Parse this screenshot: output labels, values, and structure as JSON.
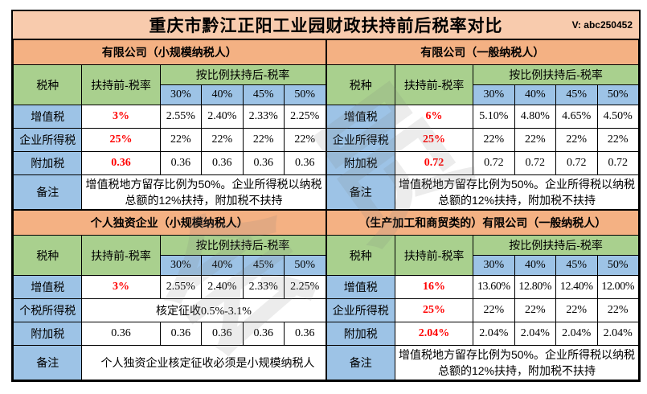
{
  "title": "重庆市黔江正阳工业园财政扶持前后税率对比",
  "version": "V: abc250452",
  "watermark": "会员",
  "colors": {
    "title_bar": "#F8CBAD",
    "section_header": "#F4B183",
    "header_green": "#A9D08E",
    "cell_blue": "#9DC3E6",
    "highlight_red": "#FF0000"
  },
  "labels": {
    "tax_type": "税种",
    "before": "扶持前-税率",
    "after": "按比例扶持后-税率",
    "ratios": [
      "30%",
      "40%",
      "45%",
      "50%"
    ],
    "remark": "备注"
  },
  "tables": [
    {
      "section": "有限公司（小规模纳税人）",
      "rows": [
        {
          "label": "增值税",
          "before": "3%",
          "after": [
            "2.55%",
            "2.40%",
            "2.33%",
            "2.25%"
          ]
        },
        {
          "label": "企业所得税",
          "before": "25%",
          "after": [
            "22%",
            "22%",
            "22%",
            "22%"
          ]
        },
        {
          "label": "附加税",
          "before": "0.36",
          "after": [
            "0.36",
            "0.36",
            "0.36",
            "0.36"
          ]
        }
      ],
      "remark": "增值税地方留存比例为50%。企业所得税以纳税总额的12%扶持，附加税不扶持"
    },
    {
      "section": "有限公司（一般纳税人）",
      "rows": [
        {
          "label": "增值税",
          "before": "6%",
          "after": [
            "5.10%",
            "4.80%",
            "4.65%",
            "4.50%"
          ]
        },
        {
          "label": "企业所得税",
          "before": "25%",
          "after": [
            "22%",
            "22%",
            "22%",
            "22%"
          ]
        },
        {
          "label": "附加税",
          "before": "0.72",
          "after": [
            "0.72",
            "0.72",
            "0.72",
            "0.72"
          ]
        }
      ],
      "remark": "增值税地方留存比例为50%。企业所得税以纳税总额的12%扶持，附加税不扶持"
    },
    {
      "section": "个人独资企业（小规模纳税人）",
      "rows": [
        {
          "label": "增值税",
          "before": "3%",
          "after": [
            "2.55%",
            "2.40%",
            "2.33%",
            "2.25%"
          ]
        },
        {
          "label": "个税所得税",
          "merged": "核定征收0.5%-3.1%"
        },
        {
          "label": "附加税",
          "before": "0.36",
          "after": [
            "0.36",
            "0.36",
            "0.36",
            "0.36"
          ]
        }
      ],
      "remark": "个人独资企业核定征收必须是小规模纳税人"
    },
    {
      "section": "（生产加工和商贸类的）有限公司（一般纳税人）",
      "rows": [
        {
          "label": "增值税",
          "before": "16%",
          "after": [
            "13.60%",
            "12.80%",
            "12.40%",
            "12.00%"
          ]
        },
        {
          "label": "企业所得税",
          "before": "25%",
          "after": [
            "22%",
            "22%",
            "22%",
            "22%"
          ]
        },
        {
          "label": "附加税",
          "before": "2.04%",
          "after": [
            "2.04%",
            "2.04%",
            "2.04%",
            "2.04%"
          ]
        }
      ],
      "remark": "增值税地方留存比例为50%。企业所得税以纳税总额的12%扶持，附加税不扶持"
    }
  ]
}
